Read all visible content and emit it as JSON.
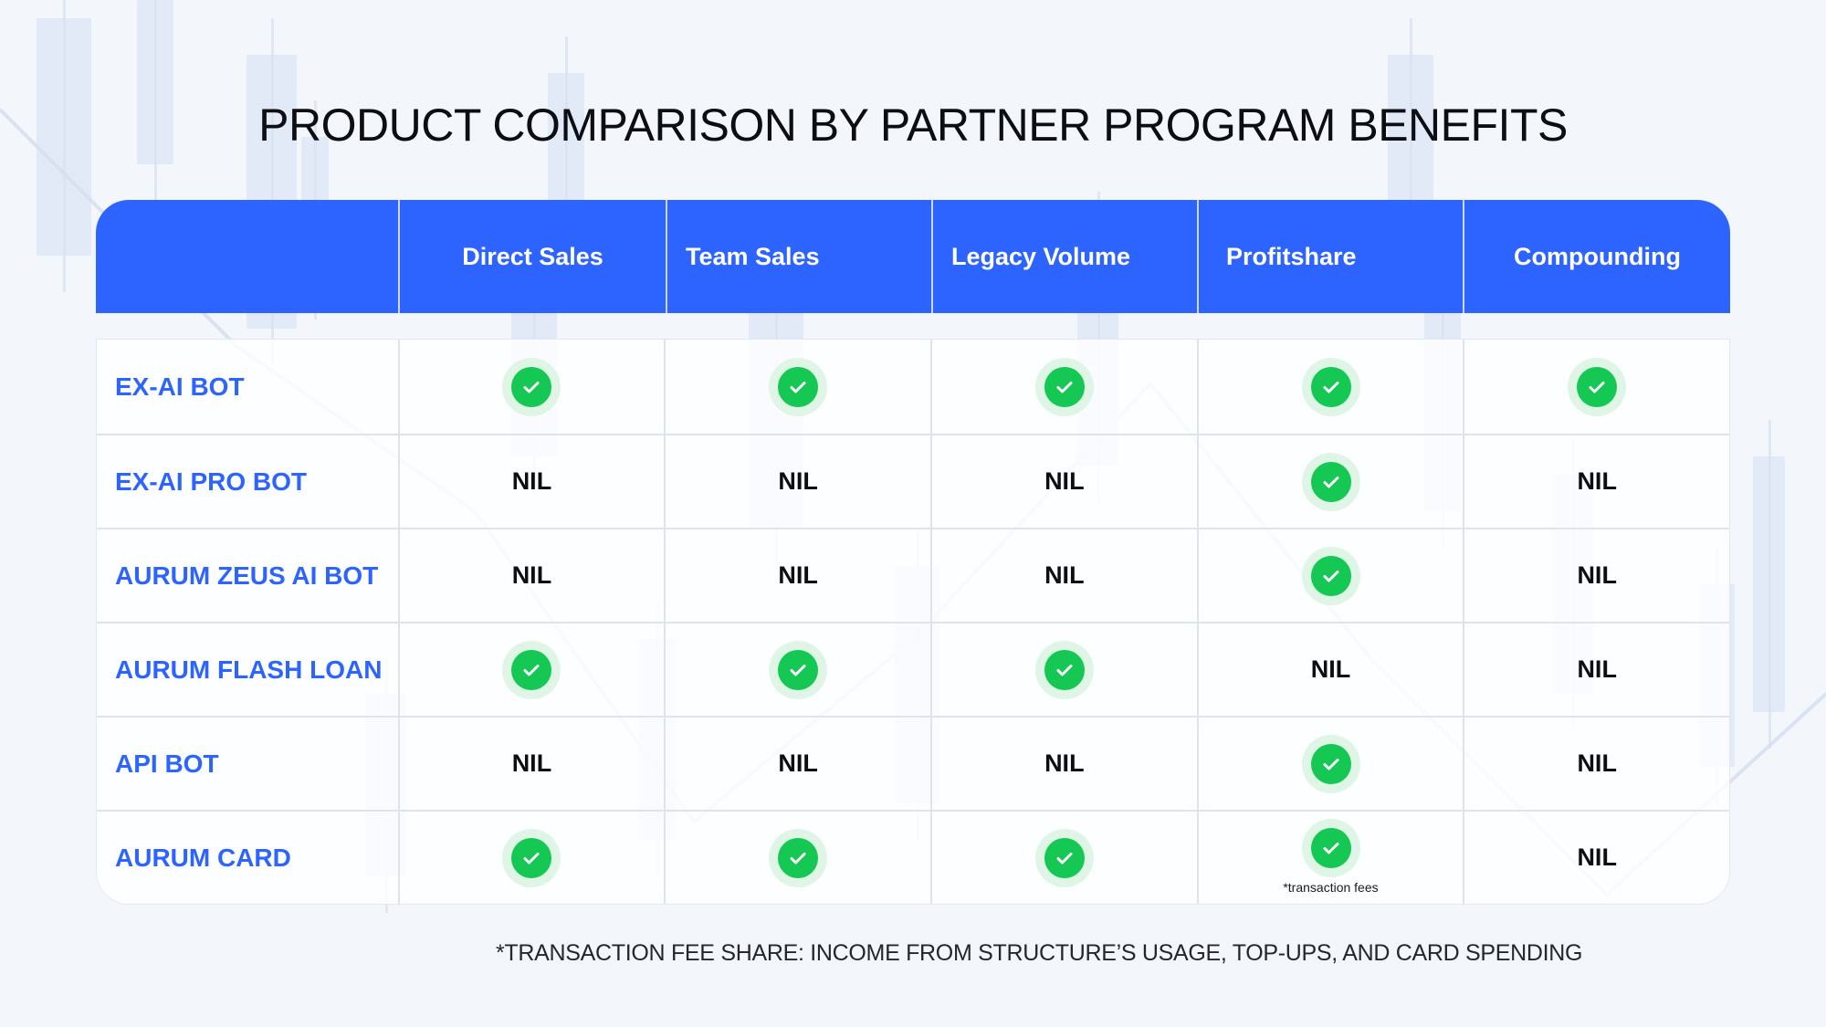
{
  "title": "PRODUCT COMPARISON BY PARTNER PROGRAM BENEFITS",
  "columns": [
    "",
    "Direct Sales",
    "Team Sales",
    "Legacy Volume",
    "Profitshare",
    "Compounding"
  ],
  "rows": [
    {
      "product": "EX-AI BOT",
      "cells": [
        "check",
        "check",
        "check",
        "check",
        "check"
      ]
    },
    {
      "product": "EX-AI PRO BOT",
      "cells": [
        "NIL",
        "NIL",
        "NIL",
        "check",
        "NIL"
      ]
    },
    {
      "product": "AURUM ZEUS AI BOT",
      "cells": [
        "NIL",
        "NIL",
        "NIL",
        "check",
        "NIL"
      ]
    },
    {
      "product": "AURUM FLASH LOAN",
      "cells": [
        "check",
        "check",
        "check",
        "NIL",
        "NIL"
      ]
    },
    {
      "product": "API BOT",
      "cells": [
        "NIL",
        "NIL",
        "NIL",
        "check",
        "NIL"
      ]
    },
    {
      "product": "AURUM CARD",
      "cells": [
        "check",
        "check",
        "check",
        "check",
        "NIL"
      ]
    }
  ],
  "cell_note": "*transaction fees",
  "footnote": "*TRANSACTION FEE SHARE: INCOME FROM STRUCTURE’S USAGE, TOP-UPS, AND CARD SPENDING",
  "icons": {
    "check": "check-circle-icon"
  },
  "colors": {
    "accent": "#2d63ff",
    "check": "#14c853",
    "check_halo": "#dff6e6"
  }
}
